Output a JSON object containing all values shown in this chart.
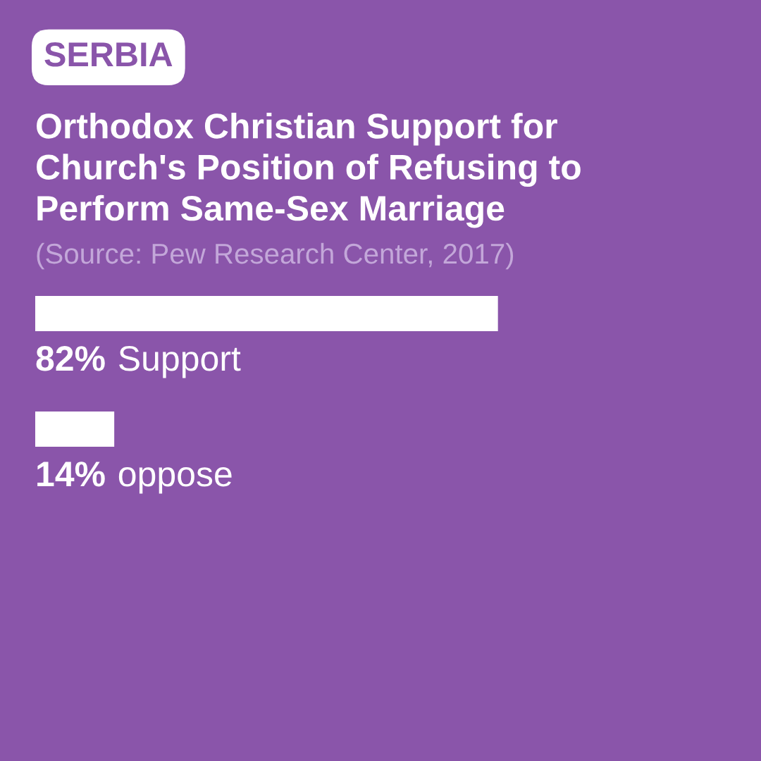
{
  "chart_data": {
    "type": "bar",
    "orientation": "horizontal",
    "title": "Orthodox Christian Support for\nChurch's Position of Refusing to\nPerform Same-Sex Marriage",
    "annotations": [
      "SERBIA",
      "(Source: Pew Research Center, 2017)"
    ],
    "categories": [
      "Support",
      "oppose"
    ],
    "values": [
      82,
      14
    ],
    "value_labels": [
      "82%",
      "14%"
    ],
    "color": "#ffffff",
    "tick_labels": false
  }
}
